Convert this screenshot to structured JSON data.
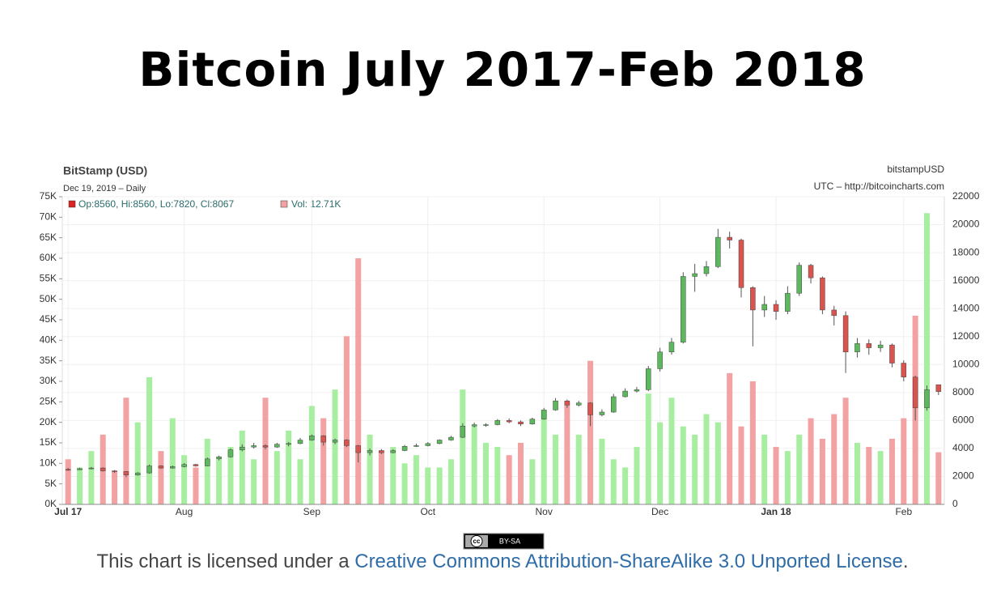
{
  "header": {
    "title": "Bitcoin July 2017-Feb 2018"
  },
  "chart_data": {
    "type": "candlestick",
    "source": "BitStamp (USD)",
    "subtitle": "Dec 19, 2019 – Daily",
    "symbol": "bitstampUSD",
    "credit": "UTC – http://bitcoincharts.com",
    "legend": {
      "ohlc": "Op:8560, Hi:8560, Lo:7820, Cl:8067",
      "volume": "Vol: 12.71K"
    },
    "categories": [
      "Jul 17",
      null,
      null,
      null,
      null,
      null,
      null,
      null,
      null,
      null,
      "Aug",
      null,
      null,
      null,
      null,
      null,
      null,
      null,
      null,
      null,
      null,
      "Sep",
      null,
      null,
      null,
      null,
      null,
      null,
      null,
      null,
      null,
      "Oct",
      null,
      null,
      null,
      null,
      null,
      null,
      null,
      null,
      null,
      "Nov",
      null,
      null,
      null,
      null,
      null,
      null,
      null,
      null,
      null,
      "Dec",
      null,
      null,
      null,
      null,
      null,
      null,
      null,
      null,
      null,
      "Jan 18",
      null,
      null,
      null,
      null,
      null,
      null,
      null,
      null,
      null,
      null,
      "Feb",
      null,
      null,
      null
    ],
    "open": [
      2500,
      2480,
      2550,
      2600,
      2400,
      2350,
      2100,
      2250,
      2750,
      2600,
      2700,
      2850,
      2750,
      3250,
      3400,
      3900,
      4100,
      4200,
      4100,
      4300,
      4350,
      4600,
      4900,
      4450,
      4600,
      4200,
      3700,
      3850,
      3700,
      3850,
      4150,
      4200,
      4350,
      4600,
      4800,
      5600,
      5700,
      5700,
      6000,
      5900,
      5750,
      6100,
      6750,
      7400,
      7100,
      7250,
      6400,
      6600,
      7700,
      8100,
      8200,
      9700,
      10900,
      11600,
      16300,
      16500,
      17000,
      19100,
      18900,
      15500,
      13900,
      14300,
      13800,
      15100,
      17100,
      16200,
      13900,
      13500,
      10900,
      11500,
      11200,
      11400,
      10100,
      9100,
      6900,
      8560
    ],
    "high": [
      2600,
      2620,
      2680,
      2650,
      2450,
      2380,
      2300,
      2850,
      2800,
      2780,
      2950,
      2900,
      3350,
      3500,
      4000,
      4300,
      4400,
      4300,
      4400,
      4450,
      4750,
      5000,
      4950,
      4700,
      4650,
      4250,
      4000,
      3950,
      3950,
      4250,
      4350,
      4450,
      4650,
      4900,
      5800,
      5850,
      5800,
      6100,
      6150,
      6000,
      6200,
      6900,
      7600,
      7500,
      7400,
      7300,
      6800,
      7900,
      8300,
      8400,
      9900,
      11200,
      11900,
      16600,
      17200,
      17400,
      19700,
      19500,
      19000,
      15600,
      14900,
      14600,
      15600,
      17300,
      17200,
      16300,
      14200,
      13800,
      11900,
      11800,
      11700,
      11500,
      10300,
      9200,
      8500,
      8560
    ],
    "low": [
      2400,
      2450,
      2500,
      2350,
      2250,
      1950,
      2050,
      2200,
      2550,
      2550,
      2650,
      2700,
      2720,
      3150,
      3350,
      3800,
      4000,
      3950,
      4050,
      4150,
      4300,
      4550,
      4200,
      4300,
      4100,
      3000,
      3500,
      3600,
      3650,
      3800,
      4100,
      4150,
      4300,
      4550,
      4750,
      5500,
      5550,
      5650,
      5800,
      5600,
      5700,
      6050,
      6700,
      6900,
      7000,
      5600,
      6300,
      6550,
      7650,
      8000,
      8100,
      9500,
      10700,
      11500,
      15200,
      16300,
      16900,
      18300,
      14800,
      11300,
      13400,
      13200,
      13600,
      14900,
      15800,
      13600,
      12800,
      9400,
      10500,
      10700,
      10900,
      9800,
      8800,
      6000,
      6700,
      7820
    ],
    "close": [
      2480,
      2550,
      2600,
      2400,
      2350,
      2100,
      2250,
      2750,
      2600,
      2700,
      2850,
      2750,
      3250,
      3400,
      3900,
      4100,
      4200,
      4100,
      4300,
      4350,
      4600,
      4900,
      4450,
      4600,
      4200,
      3700,
      3850,
      3700,
      3850,
      4150,
      4200,
      4350,
      4600,
      4800,
      5600,
      5700,
      5700,
      6000,
      5900,
      5750,
      6100,
      6750,
      7400,
      7100,
      7250,
      6400,
      6600,
      7700,
      8100,
      8200,
      9700,
      10900,
      11600,
      16300,
      16500,
      17000,
      19100,
      18900,
      15500,
      13900,
      14300,
      13800,
      15100,
      17100,
      16200,
      13900,
      13500,
      10900,
      11500,
      11200,
      11400,
      10100,
      9100,
      6900,
      8200,
      8067
    ],
    "volume": [
      11000,
      9000,
      13000,
      17000,
      8000,
      26000,
      20000,
      31000,
      13000,
      21000,
      12000,
      9000,
      16000,
      11000,
      14000,
      18000,
      11000,
      26000,
      13000,
      18000,
      11000,
      24000,
      21000,
      28000,
      41000,
      60000,
      17000,
      13000,
      14000,
      10000,
      12000,
      9000,
      9000,
      11000,
      28000,
      19000,
      15000,
      14000,
      12000,
      15000,
      11000,
      23000,
      17000,
      25000,
      17000,
      35000,
      16000,
      11000,
      9000,
      14000,
      27000,
      20000,
      26000,
      19000,
      17000,
      22000,
      20000,
      32000,
      19000,
      30000,
      17000,
      14000,
      13000,
      17000,
      21000,
      16000,
      22000,
      26000,
      15000,
      14000,
      13000,
      16000,
      21000,
      46000,
      71000,
      12710
    ],
    "ylim": [
      0,
      75000
    ],
    "yticks": [
      {
        "value": 0,
        "label": "0K"
      },
      {
        "value": 5000,
        "label": "5K"
      },
      {
        "value": 10000,
        "label": "10K"
      },
      {
        "value": 15000,
        "label": "15K"
      },
      {
        "value": 20000,
        "label": "20K"
      },
      {
        "value": 25000,
        "label": "25K"
      },
      {
        "value": 30000,
        "label": "30K"
      },
      {
        "value": 35000,
        "label": "35K"
      },
      {
        "value": 40000,
        "label": "40K"
      },
      {
        "value": 45000,
        "label": "45K"
      },
      {
        "value": 50000,
        "label": "50K"
      },
      {
        "value": 55000,
        "label": "55K"
      },
      {
        "value": 60000,
        "label": "60K"
      },
      {
        "value": 65000,
        "label": "65K"
      },
      {
        "value": 70000,
        "label": "70K"
      },
      {
        "value": 75000,
        "label": "75K"
      }
    ],
    "y2lim": [
      0,
      22000
    ],
    "y2ticks": [
      0,
      2000,
      4000,
      6000,
      8000,
      10000,
      12000,
      14000,
      16000,
      18000,
      20000,
      22000
    ],
    "up_color": "#5cb85c",
    "down_color": "#d9534f",
    "volume_up_color": "#a8eea0",
    "volume_down_color": "#f2a2a2",
    "legend_ohlc_color": "#dd2222",
    "legend_volume_color": "#f2a2a2",
    "grid": true
  },
  "badge": {
    "cc": "cc",
    "text": "BY-SA"
  },
  "footer": {
    "before": "This chart is licensed under a ",
    "link": "Creative Commons Attribution-ShareAlike 3.0 Unported License",
    "after": "."
  }
}
